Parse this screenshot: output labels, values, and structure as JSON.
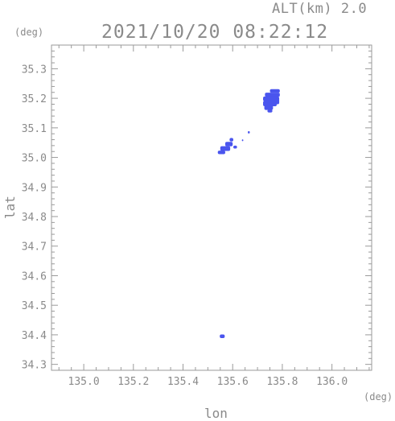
{
  "header": {
    "altitude": "ALT(km) 2.0",
    "datetime": "2021/10/20 08:22:12"
  },
  "chart_data": {
    "type": "heatmap",
    "xlabel": "lon",
    "ylabel": "lat",
    "xunit": "(deg)",
    "yunit": "(deg)",
    "xlim": [
      134.87,
      136.16
    ],
    "ylim": [
      34.28,
      35.38
    ],
    "xticks": [
      "135.0",
      "135.2",
      "135.4",
      "135.6",
      "135.8",
      "136.0"
    ],
    "yticks": [
      "34.3",
      "34.4",
      "34.5",
      "34.6",
      "34.7",
      "34.8",
      "34.9",
      "35.0",
      "35.1",
      "35.2",
      "35.3"
    ],
    "grid": false,
    "color": "#4a55ee",
    "cells": [
      {
        "lon": 135.77,
        "lat": 35.225,
        "w": 0.04,
        "h": 0.012
      },
      {
        "lon": 135.76,
        "lat": 35.212,
        "w": 0.06,
        "h": 0.014
      },
      {
        "lon": 135.755,
        "lat": 35.198,
        "w": 0.065,
        "h": 0.016
      },
      {
        "lon": 135.75,
        "lat": 35.182,
        "w": 0.055,
        "h": 0.018
      },
      {
        "lon": 135.745,
        "lat": 35.168,
        "w": 0.035,
        "h": 0.015
      },
      {
        "lon": 135.75,
        "lat": 35.157,
        "w": 0.02,
        "h": 0.01
      },
      {
        "lon": 135.78,
        "lat": 35.19,
        "w": 0.015,
        "h": 0.02
      },
      {
        "lon": 135.665,
        "lat": 35.085,
        "w": 0.008,
        "h": 0.008
      },
      {
        "lon": 135.64,
        "lat": 35.058,
        "w": 0.006,
        "h": 0.006
      },
      {
        "lon": 135.595,
        "lat": 35.06,
        "w": 0.015,
        "h": 0.012
      },
      {
        "lon": 135.585,
        "lat": 35.045,
        "w": 0.03,
        "h": 0.015
      },
      {
        "lon": 135.57,
        "lat": 35.03,
        "w": 0.04,
        "h": 0.016
      },
      {
        "lon": 135.555,
        "lat": 35.017,
        "w": 0.03,
        "h": 0.012
      },
      {
        "lon": 135.61,
        "lat": 35.035,
        "w": 0.015,
        "h": 0.01
      },
      {
        "lon": 135.558,
        "lat": 34.395,
        "w": 0.02,
        "h": 0.012
      }
    ]
  }
}
